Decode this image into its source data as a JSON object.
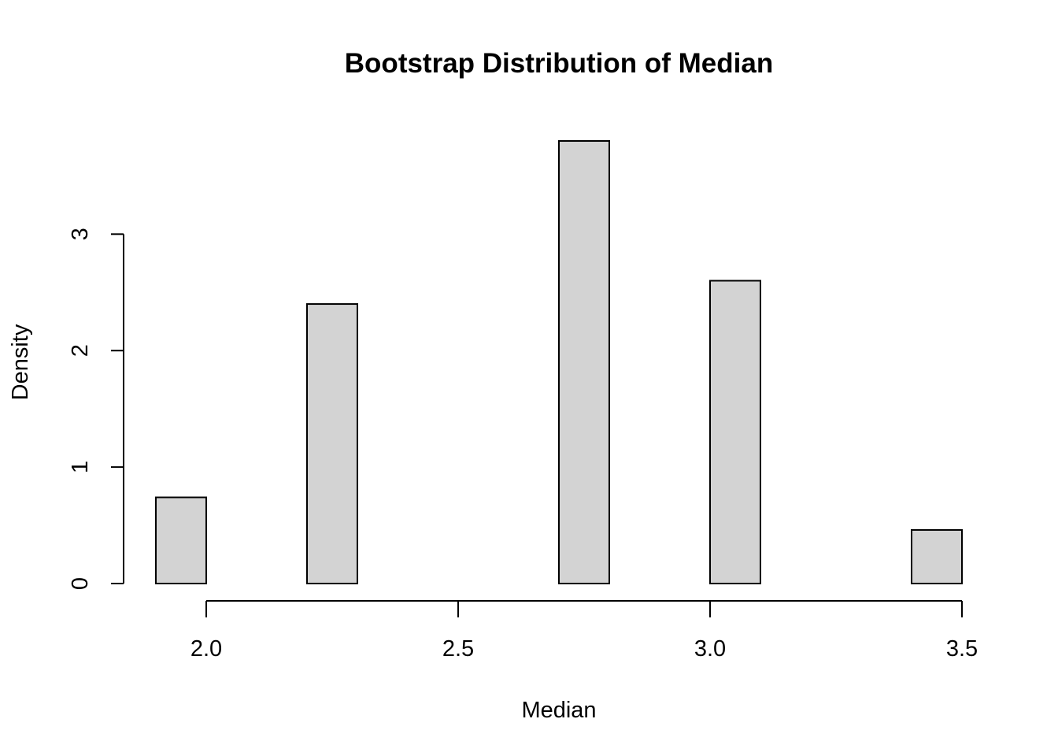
{
  "chart_data": {
    "type": "bar",
    "title": "Bootstrap Distribution of Median",
    "xlabel": "Median",
    "ylabel": "Density",
    "xlim": [
      1.9,
      3.5
    ],
    "ylim": [
      0,
      3.8
    ],
    "x_ticks": [
      2.0,
      2.5,
      3.0,
      3.5
    ],
    "x_tick_labels": [
      "2.0",
      "2.5",
      "3.0",
      "3.5"
    ],
    "y_ticks": [
      0,
      1,
      2,
      3
    ],
    "y_tick_labels": [
      "0",
      "1",
      "2",
      "3"
    ],
    "bins": [
      {
        "x0": 1.9,
        "x1": 2.0,
        "density": 0.74
      },
      {
        "x0": 2.0,
        "x1": 2.1,
        "density": 0
      },
      {
        "x0": 2.1,
        "x1": 2.2,
        "density": 0
      },
      {
        "x0": 2.2,
        "x1": 2.3,
        "density": 2.4
      },
      {
        "x0": 2.3,
        "x1": 2.4,
        "density": 0
      },
      {
        "x0": 2.4,
        "x1": 2.5,
        "density": 0
      },
      {
        "x0": 2.5,
        "x1": 2.6,
        "density": 0
      },
      {
        "x0": 2.6,
        "x1": 2.7,
        "density": 0
      },
      {
        "x0": 2.7,
        "x1": 2.8,
        "density": 3.8
      },
      {
        "x0": 2.8,
        "x1": 2.9,
        "density": 0
      },
      {
        "x0": 2.9,
        "x1": 3.0,
        "density": 0
      },
      {
        "x0": 3.0,
        "x1": 3.1,
        "density": 2.6
      },
      {
        "x0": 3.1,
        "x1": 3.2,
        "density": 0
      },
      {
        "x0": 3.2,
        "x1": 3.3,
        "density": 0
      },
      {
        "x0": 3.3,
        "x1": 3.4,
        "density": 0
      },
      {
        "x0": 3.4,
        "x1": 3.5,
        "density": 0.46
      }
    ],
    "bar_fill": "#d3d3d3",
    "bar_stroke": "#000000",
    "grid": false,
    "legend": "none"
  }
}
